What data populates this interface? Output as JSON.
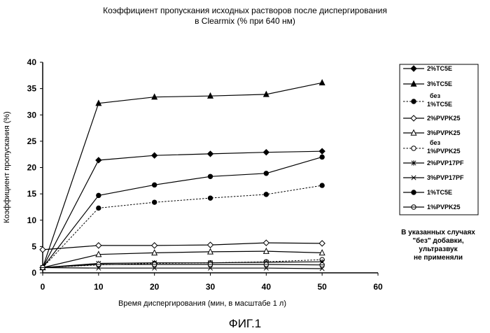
{
  "chart_data": {
    "type": "line",
    "title_line1": "Коэффициент пропускания исходных растворов после диспергирования",
    "title_line2": "в Clearmix (% при 640 нм)",
    "xlabel": "Время диспергирования (мин, в масштабе 1 л)",
    "ylabel": "Коэффициент пропускания (%)",
    "xlim": [
      0,
      60
    ],
    "ylim": [
      0,
      40
    ],
    "x_ticks": [
      "0",
      "10",
      "20",
      "30",
      "40",
      "50",
      "60"
    ],
    "y_ticks": [
      "0",
      "5",
      "10",
      "15",
      "20",
      "25",
      "30",
      "35",
      "40"
    ],
    "legend_position": "right",
    "x": [
      0,
      10,
      20,
      30,
      40,
      50
    ],
    "series": [
      {
        "name": "2%TC5E",
        "marker": "diamond-filled",
        "dash": false,
        "values": [
          1.0,
          21.4,
          22.3,
          22.6,
          22.9,
          23.1
        ]
      },
      {
        "name": "3%TC5E",
        "marker": "triangle-filled",
        "dash": false,
        "values": [
          1.0,
          32.2,
          33.4,
          33.6,
          33.9,
          36.1
        ]
      },
      {
        "name_line1": "без",
        "name_line2": "1%TC5E",
        "marker": "circle-filled",
        "dash": true,
        "values": [
          1.0,
          12.3,
          13.4,
          14.2,
          14.9,
          16.6
        ]
      },
      {
        "name": "2%PVPK25",
        "marker": "diamond-open",
        "dash": false,
        "values": [
          4.4,
          5.2,
          5.2,
          5.3,
          5.7,
          5.6
        ]
      },
      {
        "name": "3%PVPK25",
        "marker": "triangle-open",
        "dash": false,
        "values": [
          1.0,
          3.5,
          3.8,
          4.0,
          4.1,
          3.8
        ]
      },
      {
        "name_line1": "без",
        "name_line2": "1%PVPK25",
        "marker": "circle-open",
        "dash": true,
        "values": [
          1.0,
          1.5,
          1.8,
          1.9,
          2.1,
          2.5
        ]
      },
      {
        "name": "2%PVP17PF",
        "marker": "asterisk",
        "dash": false,
        "values": [
          1.0,
          1.8,
          1.9,
          1.9,
          2.0,
          2.1
        ]
      },
      {
        "name": "3%PVP17PF",
        "marker": "x",
        "dash": false,
        "values": [
          1.0,
          0.9,
          0.9,
          0.9,
          0.9,
          0.8
        ]
      },
      {
        "name": "1%TC5E",
        "marker": "circle-filled",
        "dash": false,
        "values": [
          1.0,
          14.7,
          16.7,
          18.3,
          18.9,
          22.0
        ]
      },
      {
        "name": "1%PVPK25",
        "marker": "circle-open-center",
        "dash": false,
        "values": [
          1.0,
          1.6,
          1.6,
          1.6,
          1.6,
          1.5
        ]
      }
    ],
    "note_lines": [
      "В указанных случаях",
      "\"без\" добавки,",
      "ультразвук",
      "не применяли"
    ],
    "figure_label": "ФИГ.1"
  }
}
